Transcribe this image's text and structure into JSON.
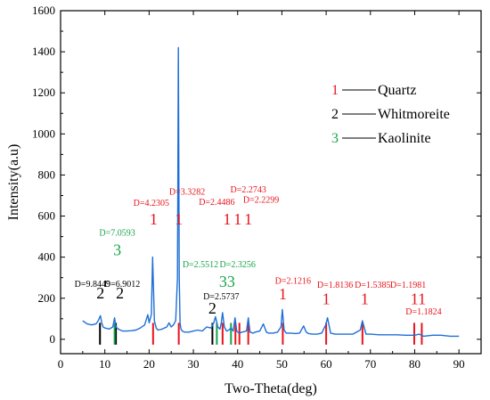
{
  "colors": {
    "series": "#1f6fd6",
    "quartz": "#e8141c",
    "whitmoreite": "#000000",
    "kaolinite": "#16a34a",
    "axis": "#000000"
  },
  "chart_data": {
    "type": "line",
    "title": "",
    "xlabel": "Two-Theta(deg)",
    "ylabel": "Intensity(a.u)",
    "xlim": [
      0,
      95
    ],
    "ylim": [
      -70,
      1600
    ],
    "xticks": [
      0,
      10,
      20,
      30,
      40,
      50,
      60,
      70,
      80,
      90
    ],
    "yticks": [
      0,
      200,
      400,
      600,
      800,
      1000,
      1200,
      1400,
      1600
    ],
    "grid": false,
    "legend_position": "top-right",
    "series": [
      {
        "x": [
          5,
          6,
          7,
          8,
          8.5,
          9,
          9.3,
          9.6,
          10,
          11,
          11.8,
          12.2,
          12.5,
          13,
          13.5,
          14,
          15,
          16,
          17,
          18,
          19,
          19.7,
          20,
          20.5,
          20.8,
          21.2,
          21.6,
          22,
          23,
          24,
          24.5,
          25,
          25.5,
          26,
          26.4,
          26.6,
          26.8,
          27,
          27.2,
          27.5,
          28,
          29,
          30,
          31,
          32,
          33,
          34,
          34.6,
          35,
          35.5,
          36,
          36.3,
          36.6,
          37,
          37.5,
          38,
          38.5,
          39,
          39.4,
          39.8,
          40.3,
          41,
          42,
          42.4,
          42.8,
          43.5,
          44,
          45,
          45.8,
          46.5,
          47,
          48,
          49,
          49.8,
          50.1,
          50.5,
          51,
          52,
          53,
          54,
          54.9,
          55.5,
          56,
          57,
          58,
          59,
          59.9,
          60.3,
          61,
          62,
          64,
          66,
          67.7,
          68.2,
          69,
          70,
          72,
          74,
          76,
          78,
          80,
          81,
          82,
          84,
          86,
          88,
          90
        ],
        "y": [
          90,
          75,
          70,
          75,
          90,
          115,
          80,
          60,
          55,
          50,
          60,
          105,
          60,
          50,
          45,
          40,
          40,
          42,
          45,
          55,
          70,
          120,
          80,
          120,
          400,
          90,
          55,
          45,
          50,
          60,
          80,
          60,
          70,
          90,
          300,
          1420,
          300,
          80,
          50,
          40,
          35,
          35,
          40,
          45,
          40,
          60,
          55,
          80,
          110,
          60,
          50,
          80,
          130,
          60,
          40,
          45,
          55,
          40,
          105,
          40,
          30,
          35,
          40,
          105,
          35,
          30,
          35,
          40,
          75,
          35,
          30,
          30,
          35,
          60,
          145,
          45,
          30,
          30,
          28,
          30,
          65,
          35,
          28,
          25,
          25,
          30,
          70,
          105,
          30,
          25,
          25,
          25,
          45,
          90,
          25,
          25,
          22,
          22,
          22,
          20,
          20,
          25,
          15,
          20,
          20,
          15,
          15
        ]
      }
    ],
    "reference_lines": [
      {
        "x": 8.9,
        "phase": "2"
      },
      {
        "x": 12.5,
        "phase": "2"
      },
      {
        "x": 12.2,
        "phase": "3"
      },
      {
        "x": 20.9,
        "phase": "1"
      },
      {
        "x": 26.7,
        "phase": "1"
      },
      {
        "x": 34.3,
        "phase": "2"
      },
      {
        "x": 35.3,
        "phase": "3"
      },
      {
        "x": 36.6,
        "phase": "1"
      },
      {
        "x": 38.5,
        "phase": "3"
      },
      {
        "x": 39.5,
        "phase": "1"
      },
      {
        "x": 40.4,
        "phase": "1"
      },
      {
        "x": 42.4,
        "phase": "1"
      },
      {
        "x": 50.2,
        "phase": "1"
      },
      {
        "x": 60.0,
        "phase": "1"
      },
      {
        "x": 68.2,
        "phase": "1"
      },
      {
        "x": 79.9,
        "phase": "1"
      },
      {
        "x": 81.6,
        "phase": "1"
      }
    ],
    "annotations": [
      {
        "text": "D=9.8449",
        "phase": "2",
        "x": 7.2,
        "y": 255,
        "kind": "d"
      },
      {
        "text": "D=6.9012",
        "phase": "2",
        "x": 13.9,
        "y": 255,
        "kind": "d"
      },
      {
        "text": "2",
        "phase": "2",
        "x": 9.0,
        "y": 200,
        "kind": "num"
      },
      {
        "text": "2",
        "phase": "2",
        "x": 13.4,
        "y": 200,
        "kind": "num"
      },
      {
        "text": "D=7.0593",
        "phase": "3",
        "x": 12.8,
        "y": 505,
        "kind": "d"
      },
      {
        "text": "3",
        "phase": "3",
        "x": 12.8,
        "y": 410,
        "kind": "num"
      },
      {
        "text": "D=4.2305",
        "phase": "1",
        "x": 20.5,
        "y": 650,
        "kind": "d"
      },
      {
        "text": "1",
        "phase": "1",
        "x": 21.0,
        "y": 560,
        "kind": "num"
      },
      {
        "text": "D=3.3282",
        "phase": "1",
        "x": 28.6,
        "y": 705,
        "kind": "d"
      },
      {
        "text": "1",
        "phase": "1",
        "x": 26.7,
        "y": 560,
        "kind": "num"
      },
      {
        "text": "D=2.4486",
        "phase": "1",
        "x": 35.3,
        "y": 655,
        "kind": "d"
      },
      {
        "text": "D=2.2743",
        "phase": "1",
        "x": 42.4,
        "y": 715,
        "kind": "d"
      },
      {
        "text": "D=2.2299",
        "phase": "1",
        "x": 45.3,
        "y": 665,
        "kind": "d"
      },
      {
        "text": "1",
        "phase": "1",
        "x": 37.6,
        "y": 560,
        "kind": "num"
      },
      {
        "text": "1",
        "phase": "1",
        "x": 40.0,
        "y": 560,
        "kind": "num"
      },
      {
        "text": "1",
        "phase": "1",
        "x": 42.4,
        "y": 560,
        "kind": "num"
      },
      {
        "text": "D=2.5512",
        "phase": "3",
        "x": 31.6,
        "y": 350,
        "kind": "d"
      },
      {
        "text": "D=2.3256",
        "phase": "3",
        "x": 40.0,
        "y": 350,
        "kind": "d"
      },
      {
        "text": "33",
        "phase": "3",
        "x": 37.6,
        "y": 255,
        "kind": "num"
      },
      {
        "text": "D=2.5737",
        "phase": "2",
        "x": 36.3,
        "y": 195,
        "kind": "d"
      },
      {
        "text": "2",
        "phase": "2",
        "x": 34.3,
        "y": 125,
        "kind": "num"
      },
      {
        "text": "D=2.1216",
        "phase": "1",
        "x": 52.5,
        "y": 270,
        "kind": "d"
      },
      {
        "text": "1",
        "phase": "1",
        "x": 50.2,
        "y": 195,
        "kind": "num"
      },
      {
        "text": "D=1.8136",
        "phase": "1",
        "x": 62.0,
        "y": 250,
        "kind": "d"
      },
      {
        "text": "1",
        "phase": "1",
        "x": 60.0,
        "y": 170,
        "kind": "num"
      },
      {
        "text": "D=1.5385",
        "phase": "1",
        "x": 70.5,
        "y": 250,
        "kind": "d"
      },
      {
        "text": "1",
        "phase": "1",
        "x": 68.7,
        "y": 170,
        "kind": "num"
      },
      {
        "text": "D=1.1981",
        "phase": "1",
        "x": 78.5,
        "y": 250,
        "kind": "d"
      },
      {
        "text": "11",
        "phase": "1",
        "x": 80.8,
        "y": 170,
        "kind": "num"
      },
      {
        "text": "D=1.1824",
        "phase": "1",
        "x": 82.0,
        "y": 120,
        "kind": "d"
      }
    ],
    "legend": [
      {
        "num": "1",
        "phase": "1",
        "text": "Quartz"
      },
      {
        "num": "2",
        "phase": "2",
        "text": "Whitmoreite"
      },
      {
        "num": "3",
        "phase": "3",
        "text": "Kaolinite"
      }
    ]
  }
}
